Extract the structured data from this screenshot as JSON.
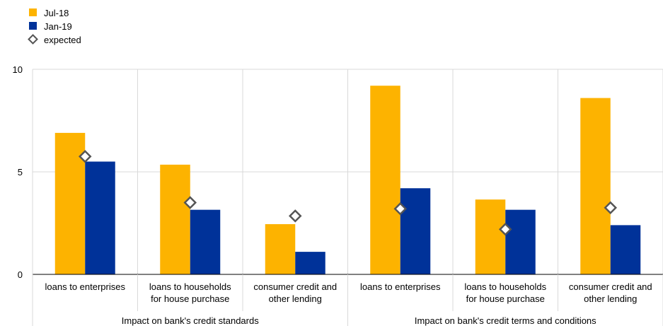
{
  "chart_data": {
    "type": "bar",
    "title": "",
    "xlabel": "",
    "ylabel": "",
    "ylim": [
      0,
      10
    ],
    "yticks": [
      0,
      5,
      10
    ],
    "grid": true,
    "legend_position": "top-left",
    "groups": [
      {
        "label": "Impact on bank's credit standards",
        "categories": 3
      },
      {
        "label": "Impact on bank's credit terms and conditions",
        "categories": 3
      }
    ],
    "categories": [
      [
        "loans to enterprises"
      ],
      [
        "loans to households",
        "for house purchase"
      ],
      [
        "consumer credit and",
        "other lending"
      ],
      [
        "loans to enterprises"
      ],
      [
        "loans to households",
        "for house purchase"
      ],
      [
        "consumer credit and",
        "other lending"
      ]
    ],
    "series": [
      {
        "name": "Jul-18",
        "color": "#FDB300",
        "values": [
          6.9,
          5.35,
          2.45,
          9.2,
          3.65,
          8.6
        ]
      },
      {
        "name": "Jan-19",
        "color": "#003299",
        "values": [
          5.5,
          3.15,
          1.1,
          4.2,
          3.15,
          2.4
        ]
      }
    ],
    "markers": {
      "name": "expected",
      "color": "#555555",
      "values": [
        5.75,
        3.5,
        2.85,
        3.2,
        2.2,
        3.25
      ]
    }
  }
}
